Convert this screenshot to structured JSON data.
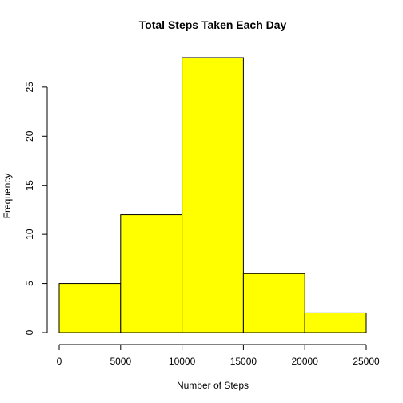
{
  "chart_data": {
    "type": "bar",
    "title": "Total Steps Taken Each Day",
    "xlabel": "Number of Steps",
    "ylabel": "Frequency",
    "bin_edges": [
      0,
      5000,
      10000,
      15000,
      20000,
      25000
    ],
    "values": [
      5,
      12,
      28,
      6,
      2
    ],
    "xlim": [
      0,
      25000
    ],
    "ylim": [
      0,
      28
    ],
    "x_ticks": [
      0,
      5000,
      10000,
      15000,
      20000,
      25000
    ],
    "y_ticks": [
      0,
      5,
      10,
      15,
      20,
      25
    ],
    "bar_color": "#FFFF00",
    "grid": false
  }
}
